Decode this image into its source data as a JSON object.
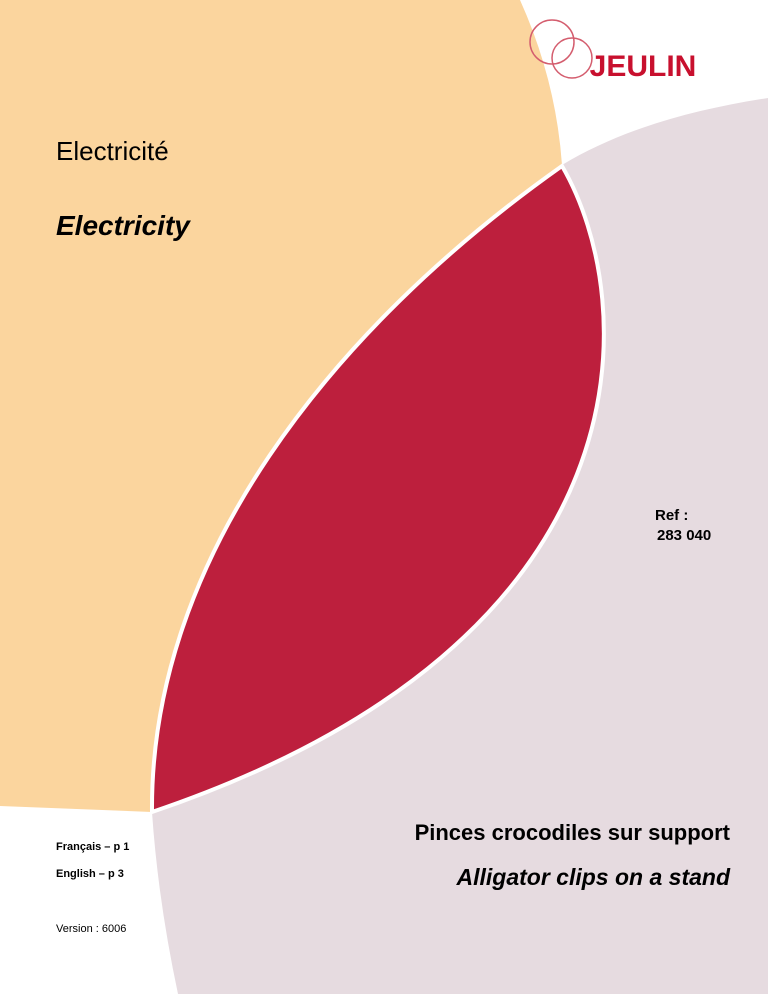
{
  "logo": "JEULIN",
  "title": {
    "fr": "Electricité",
    "en": "Electricity"
  },
  "reference": {
    "label": "Ref :",
    "number": "283 040"
  },
  "product": {
    "fr": "Pinces crocodiles sur support",
    "en": "Alligator clips on a stand"
  },
  "pages": {
    "fr": "Français – p 1",
    "en": "English – p 3"
  },
  "version": "Version : 6006"
}
